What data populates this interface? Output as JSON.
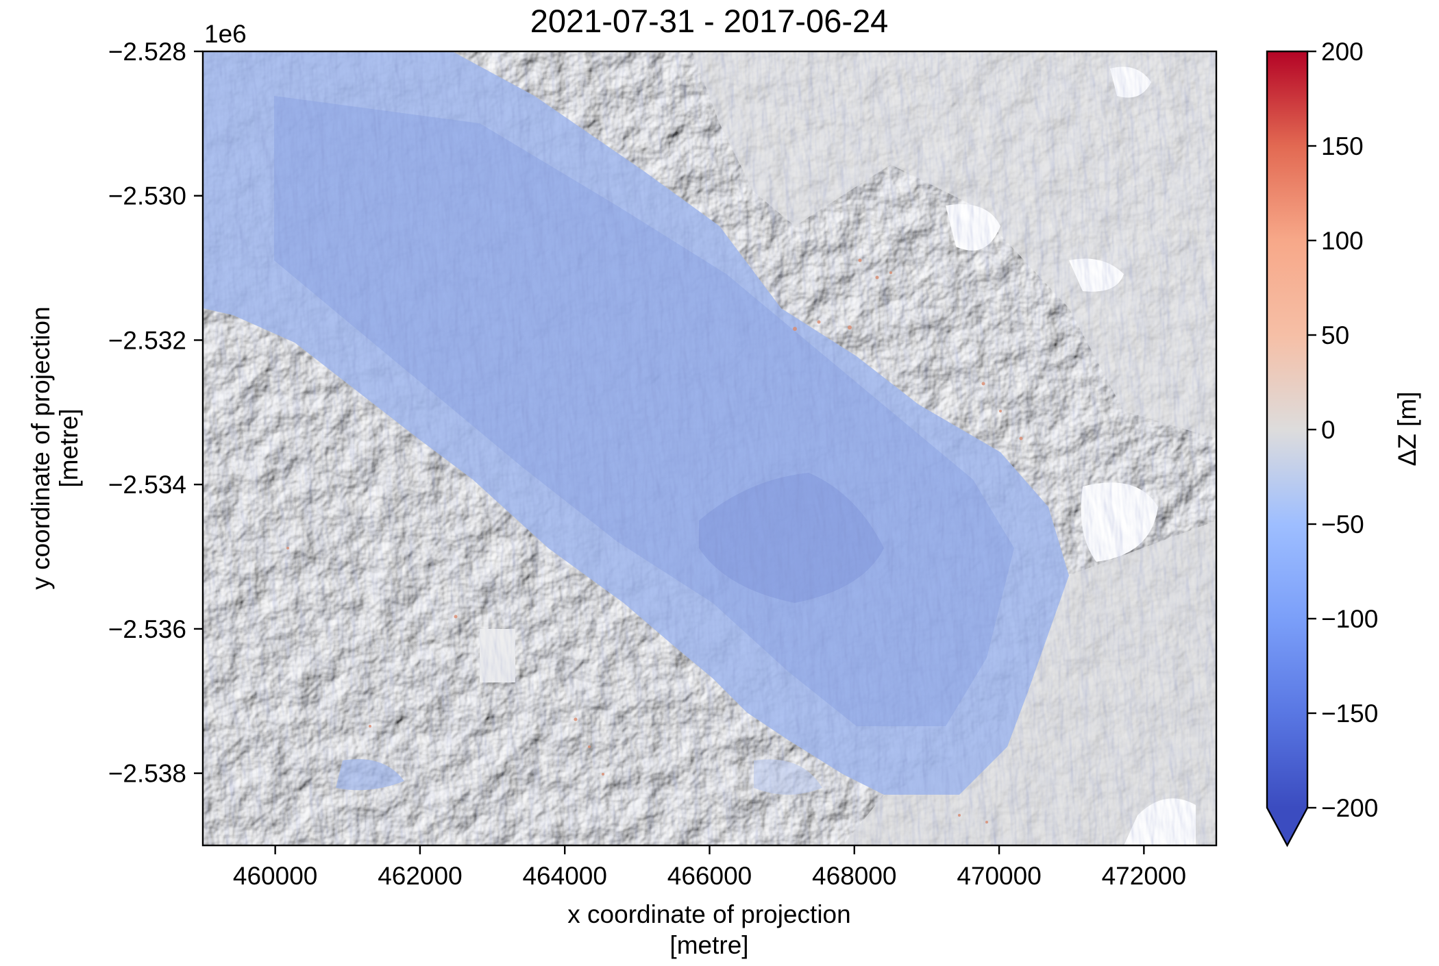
{
  "chart_data": {
    "type": "heatmap",
    "title": "2021-07-31 - 2017-06-24",
    "xlabel": [
      "x coordinate of projection",
      "[metre]"
    ],
    "ylabel": [
      "y coordinate of projection",
      "[metre]"
    ],
    "xlim": [
      459000,
      473000
    ],
    "ylim": [
      -2539000,
      -2528000
    ],
    "x_ticks": [
      460000,
      462000,
      464000,
      466000,
      468000,
      470000,
      472000
    ],
    "x_tick_labels": [
      "460000",
      "462000",
      "464000",
      "466000",
      "468000",
      "470000",
      "472000"
    ],
    "y_ticks": [
      -2528000,
      -2530000,
      -2532000,
      -2534000,
      -2536000,
      -2538000
    ],
    "y_tick_labels": [
      "−2.528",
      "−2.530",
      "−2.532",
      "−2.534",
      "−2.536",
      "−2.538"
    ],
    "y_offset_label": "1e6",
    "colorbar": {
      "label": "ΔZ [m]",
      "vmin": -200,
      "vmax": 200,
      "extend": "min",
      "ticks": [
        200,
        150,
        100,
        50,
        0,
        -50,
        -100,
        -150,
        -200
      ],
      "tick_labels": [
        "200",
        "150",
        "100",
        "50",
        "0",
        "−50",
        "−100",
        "−150",
        "−200"
      ],
      "colormap": "coolwarm",
      "stops": [
        {
          "v": -200,
          "color": "#3b4cc0"
        },
        {
          "v": -150,
          "color": "#5977e3"
        },
        {
          "v": -100,
          "color": "#7b9ff9"
        },
        {
          "v": -50,
          "color": "#9ebeff"
        },
        {
          "v": 0,
          "color": "#dddcdc"
        },
        {
          "v": 50,
          "color": "#f6bfa6"
        },
        {
          "v": 100,
          "color": "#f7a889"
        },
        {
          "v": 150,
          "color": "#e26952"
        },
        {
          "v": 200,
          "color": "#b40426"
        }
      ]
    },
    "grid": false,
    "overlay": "hillshade"
  }
}
